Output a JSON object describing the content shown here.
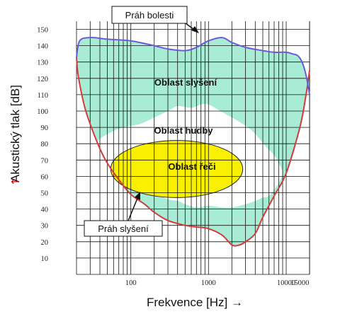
{
  "chart_data": {
    "type": "area",
    "title": "",
    "xlabel": "Frekvence [Hz] →",
    "ylabel": "Akustický tlak [dB]",
    "ylabel_arrow": "↑",
    "x_scale": "log",
    "xlim": [
      20,
      20000
    ],
    "ylim": [
      0,
      155
    ],
    "grid": true,
    "x_tick_labels": [
      {
        "value": 100,
        "label": "100"
      },
      {
        "value": 1000,
        "label": "1000"
      },
      {
        "value": 10000,
        "label": "10000"
      },
      {
        "value": 15000,
        "label": "15000"
      }
    ],
    "y_ticks": [
      10,
      20,
      30,
      40,
      50,
      60,
      70,
      80,
      90,
      100,
      110,
      120,
      130,
      140,
      150
    ],
    "colors": {
      "hearing_area": "#a8ecd6",
      "music_area": "#ffffff",
      "speech_area": "#f8f000",
      "pain_line": "#6a5ad8",
      "threshold_line": "#d43a3a",
      "grid": "#111111"
    },
    "series": [
      {
        "name": "Práh bolesti",
        "x": [
          20,
          22,
          30,
          50,
          100,
          200,
          300,
          500,
          700,
          1000,
          1500,
          2000,
          3000,
          5000,
          7000,
          10000,
          12000,
          14000,
          16000,
          18000,
          20000
        ],
        "y": [
          133,
          143,
          145,
          144,
          143,
          140,
          138,
          137,
          139,
          143,
          145,
          142,
          139,
          137,
          136,
          136,
          135,
          134,
          130,
          122,
          110
        ]
      },
      {
        "name": "Práh slyšení",
        "x": [
          20,
          21,
          25,
          30,
          40,
          50,
          70,
          100,
          150,
          200,
          300,
          500,
          700,
          1000,
          1500,
          2000,
          2500,
          3000,
          4000,
          5000,
          7000,
          10000,
          15000,
          18000,
          20000
        ],
        "y": [
          133,
          122,
          104,
          92,
          77,
          68,
          58,
          49,
          43,
          38,
          33,
          30,
          29,
          28,
          24,
          18,
          18,
          20,
          25,
          35,
          48,
          62,
          90,
          110,
          125
        ]
      }
    ],
    "regions": [
      {
        "label": "Oblast slyšení",
        "fill": "hearing_area",
        "bounds": "between Práh slyšení and Práh bolesti"
      },
      {
        "label": "Oblast hudby",
        "fill": "music_area",
        "x": [
          30,
          38,
          55,
          80,
          130,
          200,
          300,
          400,
          600,
          800,
          1000,
          1300,
          2000,
          3000,
          4000,
          5500,
          7000,
          8000,
          9000,
          8000,
          7000,
          6000,
          5000,
          4000,
          3000,
          2000,
          1500,
          1000,
          700,
          500,
          400,
          300,
          200,
          130,
          80,
          45,
          30
        ],
        "y": [
          74,
          82,
          87,
          90,
          92,
          96,
          100,
          103,
          102,
          104,
          104,
          101,
          96,
          91,
          86,
          78,
          73,
          68,
          62,
          56,
          52,
          48,
          47,
          45,
          43,
          41,
          41,
          42,
          41,
          43,
          45,
          46,
          50,
          53,
          58,
          67,
          74
        ]
      },
      {
        "label": "Oblast řeči",
        "fill": "speech_area",
        "center_hz": 390,
        "center_db": 64.5,
        "spread_decades": 0.85,
        "spread_db": 17.5
      }
    ],
    "annotations": [
      {
        "text": "Práh bolesti",
        "points_to_hz": 1300,
        "points_to_db": 145
      },
      {
        "text": "Práh slyšení",
        "points_to_hz": 150,
        "points_to_db": 43
      }
    ]
  }
}
